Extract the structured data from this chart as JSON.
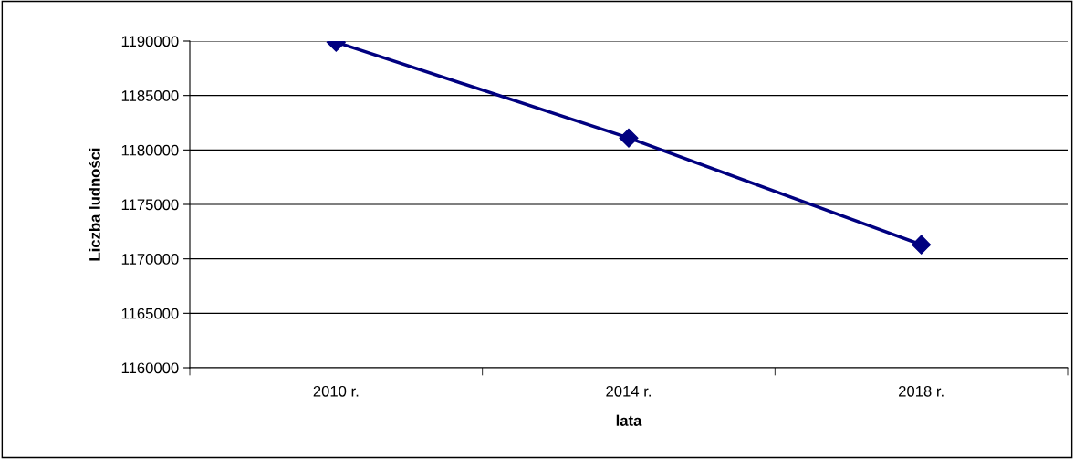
{
  "chart_data": {
    "type": "line",
    "xlabel": "lata",
    "ylabel": "Liczba ludności",
    "categories": [
      "2010 r.",
      "2014 r.",
      "2018 r."
    ],
    "series": [
      {
        "color": "#000080",
        "values": [
          1189900,
          1181100,
          1171300
        ]
      }
    ],
    "ylim": [
      1160000,
      1190000
    ],
    "yticks": [
      1160000,
      1165000,
      1170000,
      1175000,
      1180000,
      1185000,
      1190000
    ],
    "grid": "y",
    "marker": "diamond",
    "line_style": "solid"
  }
}
